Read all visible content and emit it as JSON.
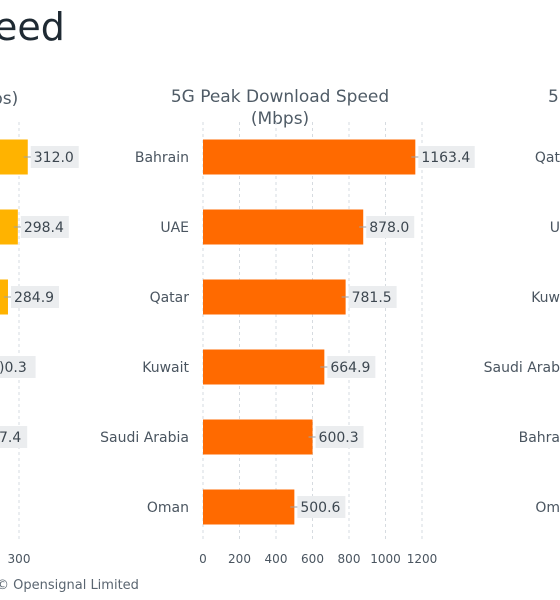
{
  "page": {
    "title": "eed",
    "footer": "© Opensignal Limited"
  },
  "chart_data": [
    {
      "type": "bar",
      "orientation": "horizontal",
      "title": "ps)",
      "color": "#FFB300",
      "categories": [
        "",
        "",
        "",
        "",
        "",
        ""
      ],
      "values": [
        312.0,
        298.4,
        284.9,
        null,
        null,
        null
      ],
      "value_labels": [
        "312.0",
        "298.4",
        "284.9",
        ")0.3",
        "7.4",
        ""
      ],
      "xticks": [
        "300"
      ],
      "error_bars": true
    },
    {
      "type": "bar",
      "orientation": "horizontal",
      "title": "5G Peak Download Speed\n(Mbps)",
      "color": "#FF6A00",
      "categories": [
        "Bahrain",
        "UAE",
        "Qatar",
        "Kuwait",
        "Saudi Arabia",
        "Oman"
      ],
      "values": [
        1163.4,
        878.0,
        781.5,
        664.9,
        600.3,
        500.6
      ],
      "value_labels": [
        "1163.4",
        "878.0",
        "781.5",
        "664.9",
        "600.3",
        "500.6"
      ],
      "xlim": [
        0,
        1300
      ],
      "xticks": [
        "0",
        "200",
        "400",
        "600",
        "800",
        "1000",
        "1200"
      ],
      "grid": true,
      "error_bars": true
    },
    {
      "type": "bar",
      "orientation": "horizontal",
      "title": "5",
      "categories": [
        "Qat",
        "U",
        "Kuw",
        "Saudi Arab",
        "Bahra",
        "Om"
      ]
    }
  ]
}
